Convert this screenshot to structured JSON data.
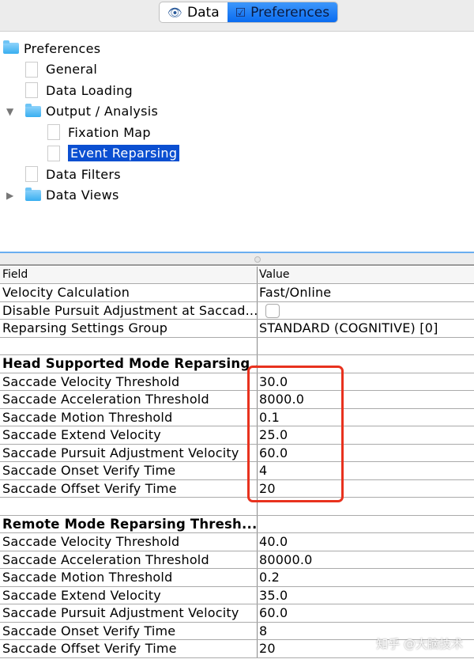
{
  "tabs": [
    {
      "label": "Data",
      "icon": "eye-icon",
      "active": false
    },
    {
      "label": "Preferences",
      "icon": "checkbox-icon",
      "active": true
    }
  ],
  "tree": [
    {
      "label": "Preferences",
      "type": "folder",
      "level": 0
    },
    {
      "label": "General",
      "type": "doc",
      "level": 1
    },
    {
      "label": "Data Loading",
      "type": "doc",
      "level": 1
    },
    {
      "label": "Output / Analysis",
      "type": "folder",
      "level": 1,
      "expanded": true
    },
    {
      "label": "Fixation Map",
      "type": "doc",
      "level": 2
    },
    {
      "label": "Event Reparsing",
      "type": "doc",
      "level": 2,
      "selected": true
    },
    {
      "label": "Data Filters",
      "type": "doc",
      "level": 1
    },
    {
      "label": "Data Views",
      "type": "folder",
      "level": 1,
      "expanded": false
    }
  ],
  "table": {
    "headers": {
      "field": "Field",
      "value": "Value"
    },
    "rows": [
      {
        "field": "Velocity Calculation",
        "value": "Fast/Online"
      },
      {
        "field": "Disable Pursuit Adjustment at Saccad...",
        "value": "",
        "checkbox": false
      },
      {
        "field": "Reparsing Settings Group",
        "value": "STANDARD (COGNITIVE) [0]"
      },
      {
        "field": "",
        "value": ""
      },
      {
        "field": "Head Supported Mode Reparsing ...",
        "value": "",
        "bold": true
      },
      {
        "field": "Saccade Velocity Threshold",
        "value": "30.0"
      },
      {
        "field": "Saccade Acceleration Threshold",
        "value": "8000.0"
      },
      {
        "field": "Saccade Motion Threshold",
        "value": "0.1"
      },
      {
        "field": "Saccade Extend Velocity",
        "value": "25.0"
      },
      {
        "field": "Saccade Pursuit Adjustment Velocity",
        "value": "60.0"
      },
      {
        "field": "Saccade Onset Verify Time",
        "value": "4"
      },
      {
        "field": "Saccade Offset Verify Time",
        "value": "20"
      },
      {
        "field": "",
        "value": ""
      },
      {
        "field": "Remote Mode Reparsing Thresh...",
        "value": "",
        "bold": true
      },
      {
        "field": "Saccade Velocity Threshold",
        "value": "40.0"
      },
      {
        "field": "Saccade Acceleration Threshold",
        "value": "80000.0"
      },
      {
        "field": "Saccade Motion Threshold",
        "value": "0.2"
      },
      {
        "field": "Saccade Extend Velocity",
        "value": "35.0"
      },
      {
        "field": "Saccade Pursuit Adjustment Velocity",
        "value": "60.0"
      },
      {
        "field": "Saccade Onset Verify Time",
        "value": "8"
      },
      {
        "field": "Saccade Offset Verify Time",
        "value": "20"
      }
    ]
  },
  "highlight_color": "#e8321e",
  "selection_color": "#0b4fd1",
  "watermark": "知乎 @大脑技术"
}
